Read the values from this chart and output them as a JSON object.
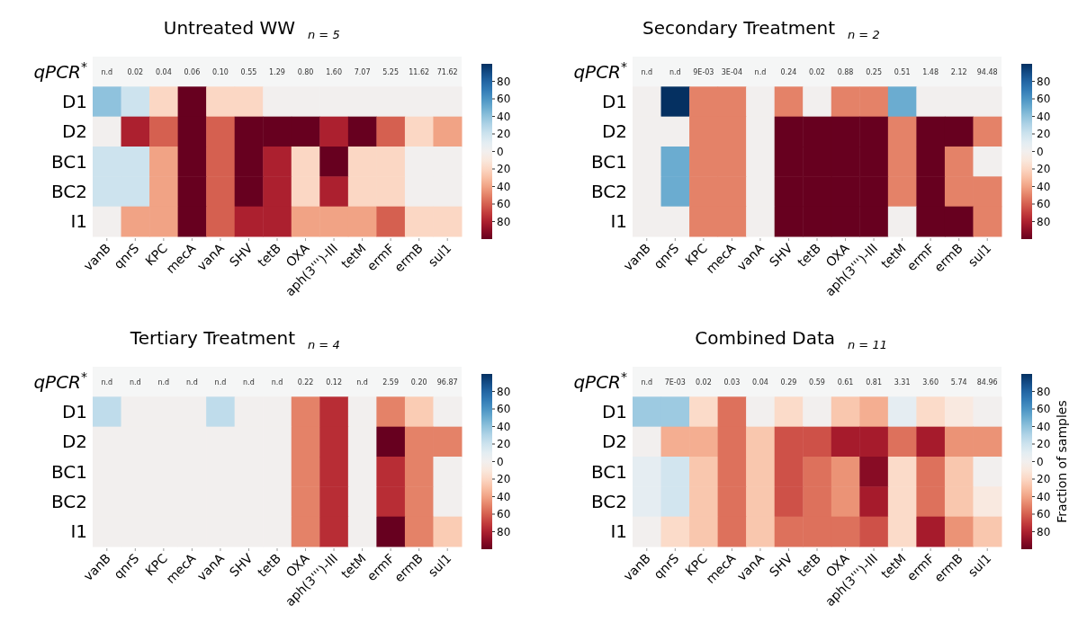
{
  "chart_data": [
    {
      "type": "heatmap",
      "title": "Untreated WW",
      "subtitle": "n = 5",
      "categories": [
        "vanB",
        "qnrS",
        "KPC",
        "mecA",
        "vanA",
        "SHV",
        "tetB",
        "OXA",
        "aph(3''')-III",
        "tetM",
        "ermF",
        "ermB",
        "sul1"
      ],
      "y_categories": [
        "qPCR$^{*}$",
        "D1",
        "D2",
        "BC1",
        "BC2",
        "I1"
      ],
      "cells": [
        [
          null,
          null,
          null,
          null,
          null,
          null,
          null,
          null,
          null,
          null,
          null,
          null,
          null
        ],
        [
          40,
          20,
          -20,
          -100,
          -20,
          -20,
          0,
          0,
          0,
          0,
          0,
          0,
          0
        ],
        [
          0,
          -80,
          -60,
          -100,
          -60,
          -100,
          -100,
          -100,
          -80,
          -100,
          -60,
          -20,
          -40
        ],
        [
          20,
          20,
          -40,
          -100,
          -60,
          -100,
          -80,
          -20,
          -100,
          -20,
          -20,
          0,
          0
        ],
        [
          20,
          20,
          -40,
          -100,
          -60,
          -100,
          -80,
          -20,
          -80,
          -20,
          -20,
          0,
          0
        ],
        [
          0,
          -40,
          -40,
          -100,
          -60,
          -80,
          -80,
          -40,
          -40,
          -40,
          -60,
          -20,
          -20
        ]
      ],
      "cell_labels": [
        [
          "n.d",
          "0.02",
          "0.04",
          "0.06",
          "0.10",
          "0.55",
          "1.29",
          "0.80",
          "1.60",
          "7.07",
          "5.25",
          "11.62",
          "71.62"
        ],
        [
          null,
          null,
          null,
          null,
          null,
          null,
          null,
          null,
          null,
          null,
          null,
          null,
          null
        ],
        [
          null,
          null,
          null,
          null,
          null,
          null,
          null,
          null,
          null,
          null,
          null,
          null,
          null
        ],
        [
          null,
          null,
          null,
          null,
          null,
          null,
          null,
          null,
          null,
          null,
          null,
          null,
          null
        ],
        [
          null,
          null,
          null,
          null,
          null,
          null,
          null,
          null,
          null,
          null,
          null,
          null,
          null
        ],
        [
          null,
          null,
          null,
          null,
          null,
          null,
          null,
          null,
          null,
          null,
          null,
          null,
          null
        ]
      ],
      "clim": [
        -100,
        100
      ],
      "cticks": [
        {
          "value": 80,
          "label": "80"
        },
        {
          "value": 60,
          "label": "60"
        },
        {
          "value": 40,
          "label": "40"
        },
        {
          "value": 20,
          "label": "20"
        },
        {
          "value": 0,
          "label": "0"
        },
        {
          "value": -20,
          "label": "20"
        },
        {
          "value": -40,
          "label": "40"
        },
        {
          "value": -60,
          "label": "60"
        },
        {
          "value": -80,
          "label": "80"
        }
      ]
    },
    {
      "type": "heatmap",
      "title": "Secondary Treatment",
      "subtitle": "n = 2",
      "categories": [
        "vanB",
        "qnrS",
        "KPC",
        "mecA",
        "vanA",
        "SHV",
        "tetB",
        "OXA",
        "aph(3''')-III",
        "tetM",
        "ermF",
        "ermB",
        "sul1"
      ],
      "y_categories": [
        "qPCR$^{*}$",
        "D1",
        "D2",
        "BC1",
        "BC2",
        "I1"
      ],
      "cells": [
        [
          null,
          null,
          null,
          null,
          null,
          null,
          null,
          null,
          null,
          null,
          null,
          null,
          null
        ],
        [
          0,
          100,
          -50,
          -50,
          0,
          -50,
          0,
          -50,
          -50,
          50,
          0,
          0,
          0
        ],
        [
          0,
          0,
          -50,
          -50,
          0,
          -100,
          -100,
          -100,
          -100,
          -50,
          -100,
          -100,
          -50
        ],
        [
          0,
          50,
          -50,
          -50,
          0,
          -100,
          -100,
          -100,
          -100,
          -50,
          -100,
          -50,
          0
        ],
        [
          0,
          50,
          -50,
          -50,
          0,
          -100,
          -100,
          -100,
          -100,
          -50,
          -100,
          -50,
          -50
        ],
        [
          0,
          0,
          -50,
          -50,
          0,
          -100,
          -100,
          -100,
          -100,
          0,
          -100,
          -100,
          -50
        ]
      ],
      "cell_labels": [
        [
          "n.d",
          "n.d",
          "9E-03",
          "3E-04",
          "n.d",
          "0.24",
          "0.02",
          "0.88",
          "0.25",
          "0.51",
          "1.48",
          "2.12",
          "94.48"
        ],
        [
          null,
          null,
          null,
          null,
          null,
          null,
          null,
          null,
          null,
          null,
          null,
          null,
          null
        ],
        [
          null,
          null,
          null,
          null,
          null,
          null,
          null,
          null,
          null,
          null,
          null,
          null,
          null
        ],
        [
          null,
          null,
          null,
          null,
          null,
          null,
          null,
          null,
          null,
          null,
          null,
          null,
          null
        ],
        [
          null,
          null,
          null,
          null,
          null,
          null,
          null,
          null,
          null,
          null,
          null,
          null,
          null
        ],
        [
          null,
          null,
          null,
          null,
          null,
          null,
          null,
          null,
          null,
          null,
          null,
          null,
          null
        ]
      ],
      "clim": [
        -100,
        100
      ],
      "cticks": [
        {
          "value": 80,
          "label": "80"
        },
        {
          "value": 60,
          "label": "60"
        },
        {
          "value": 40,
          "label": "40"
        },
        {
          "value": 20,
          "label": "20"
        },
        {
          "value": 0,
          "label": "0"
        },
        {
          "value": -20,
          "label": "20"
        },
        {
          "value": -40,
          "label": "40"
        },
        {
          "value": -60,
          "label": "60"
        },
        {
          "value": -80,
          "label": "80"
        }
      ]
    },
    {
      "type": "heatmap",
      "title": "Tertiary Treatment",
      "subtitle": "n = 4",
      "categories": [
        "vanB",
        "qnrS",
        "KPC",
        "mecA",
        "vanA",
        "SHV",
        "tetB",
        "OXA",
        "aph(3''')-III",
        "tetM",
        "ermF",
        "ermB",
        "sul1"
      ],
      "y_categories": [
        "qPCR$^{*}$",
        "D1",
        "D2",
        "BC1",
        "BC2",
        "I1"
      ],
      "cells": [
        [
          null,
          null,
          null,
          null,
          null,
          null,
          null,
          null,
          null,
          null,
          null,
          null,
          null
        ],
        [
          25,
          0,
          0,
          0,
          25,
          0,
          0,
          -50,
          -75,
          0,
          -50,
          -25,
          0
        ],
        [
          0,
          0,
          0,
          0,
          0,
          0,
          0,
          -50,
          -75,
          0,
          -100,
          -50,
          -50
        ],
        [
          0,
          0,
          0,
          0,
          0,
          0,
          0,
          -50,
          -75,
          0,
          -75,
          -50,
          0
        ],
        [
          0,
          0,
          0,
          0,
          0,
          0,
          0,
          -50,
          -75,
          0,
          -75,
          -50,
          0
        ],
        [
          0,
          0,
          0,
          0,
          0,
          0,
          0,
          -50,
          -75,
          0,
          -100,
          -50,
          -25
        ]
      ],
      "cell_labels": [
        [
          "n.d",
          "n.d",
          "n.d",
          "n.d",
          "n.d",
          "n.d",
          "n.d",
          "0.22",
          "0.12",
          "n.d",
          "2.59",
          "0.20",
          "96.87"
        ],
        [
          null,
          null,
          null,
          null,
          null,
          null,
          null,
          null,
          null,
          null,
          null,
          null,
          null
        ],
        [
          null,
          null,
          null,
          null,
          null,
          null,
          null,
          null,
          null,
          null,
          null,
          null,
          null
        ],
        [
          null,
          null,
          null,
          null,
          null,
          null,
          null,
          null,
          null,
          null,
          null,
          null,
          null
        ],
        [
          null,
          null,
          null,
          null,
          null,
          null,
          null,
          null,
          null,
          null,
          null,
          null,
          null
        ],
        [
          null,
          null,
          null,
          null,
          null,
          null,
          null,
          null,
          null,
          null,
          null,
          null,
          null
        ]
      ],
      "clim": [
        -100,
        100
      ],
      "cticks": [
        {
          "value": 80,
          "label": "80"
        },
        {
          "value": 60,
          "label": "60"
        },
        {
          "value": 40,
          "label": "40"
        },
        {
          "value": 20,
          "label": "20"
        },
        {
          "value": 0,
          "label": "0"
        },
        {
          "value": -20,
          "label": "20"
        },
        {
          "value": -40,
          "label": "40"
        },
        {
          "value": -60,
          "label": "60"
        },
        {
          "value": -80,
          "label": "80"
        }
      ]
    },
    {
      "type": "heatmap",
      "title": "Combined Data",
      "subtitle": "n = 11",
      "clabel": "Fraction of samples",
      "categories": [
        "vanB",
        "qnrS",
        "KPC",
        "mecA",
        "vanA",
        "SHV",
        "tetB",
        "OXA",
        "aph(3''')-III",
        "tetM",
        "ermF",
        "ermB",
        "sul1"
      ],
      "y_categories": [
        "qPCR$^{*}$",
        "D1",
        "D2",
        "BC1",
        "BC2",
        "I1"
      ],
      "cells": [
        [
          null,
          null,
          null,
          null,
          null,
          null,
          null,
          null,
          null,
          null,
          null,
          null,
          null
        ],
        [
          36,
          36,
          -18,
          -55,
          0,
          -18,
          0,
          -27,
          -36,
          9,
          -18,
          -9,
          0
        ],
        [
          0,
          -36,
          -36,
          -55,
          -27,
          -64,
          -64,
          -82,
          -82,
          -55,
          -82,
          -45,
          -45
        ],
        [
          9,
          18,
          -27,
          -55,
          -27,
          -64,
          -55,
          -45,
          -91,
          -18,
          -55,
          -27,
          0
        ],
        [
          9,
          18,
          -27,
          -55,
          -27,
          -64,
          -55,
          -45,
          -82,
          -18,
          -55,
          -27,
          -9
        ],
        [
          0,
          -18,
          -27,
          -55,
          -27,
          -55,
          -55,
          -55,
          -64,
          -18,
          -82,
          -45,
          -27
        ]
      ],
      "cell_labels": [
        [
          "n.d",
          "7E-03",
          "0.02",
          "0.03",
          "0.04",
          "0.29",
          "0.59",
          "0.61",
          "0.81",
          "3.31",
          "3.60",
          "5.74",
          "84.96"
        ],
        [
          null,
          null,
          null,
          null,
          null,
          null,
          null,
          null,
          null,
          null,
          null,
          null,
          null
        ],
        [
          null,
          null,
          null,
          null,
          null,
          null,
          null,
          null,
          null,
          null,
          null,
          null,
          null
        ],
        [
          null,
          null,
          null,
          null,
          null,
          null,
          null,
          null,
          null,
          null,
          null,
          null,
          null
        ],
        [
          null,
          null,
          null,
          null,
          null,
          null,
          null,
          null,
          null,
          null,
          null,
          null,
          null
        ],
        [
          null,
          null,
          null,
          null,
          null,
          null,
          null,
          null,
          null,
          null,
          null,
          null,
          null
        ]
      ],
      "clim": [
        -100,
        100
      ],
      "cticks": [
        {
          "value": 80,
          "label": "80"
        },
        {
          "value": 60,
          "label": "60"
        },
        {
          "value": 40,
          "label": "40"
        },
        {
          "value": 20,
          "label": "20"
        },
        {
          "value": 0,
          "label": "0"
        },
        {
          "value": -20,
          "label": "20"
        },
        {
          "value": -40,
          "label": "40"
        },
        {
          "value": -60,
          "label": "60"
        },
        {
          "value": -80,
          "label": "80"
        }
      ]
    }
  ]
}
